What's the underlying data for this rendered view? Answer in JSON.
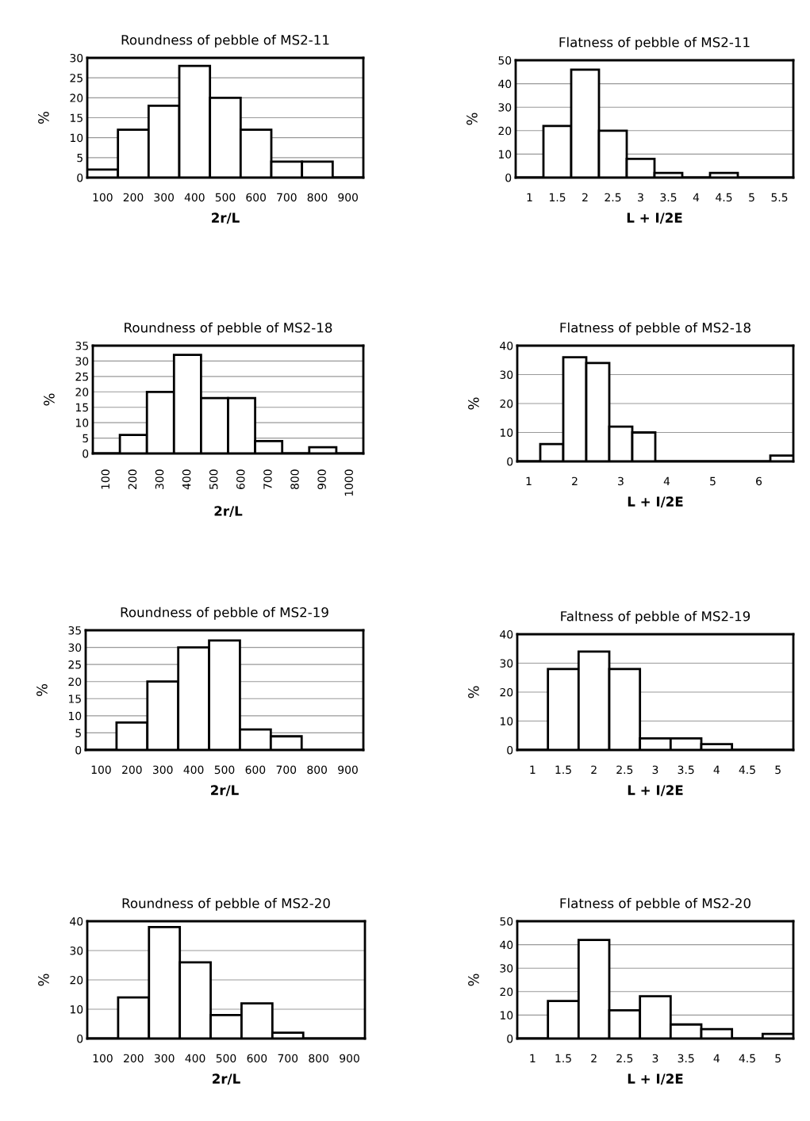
{
  "chart_data": [
    {
      "type": "bar",
      "title": "Roundness of pebble of MS2-11",
      "xlabel": "2r/L",
      "ylabel": "%",
      "categories": [
        "100",
        "200",
        "300",
        "400",
        "500",
        "600",
        "700",
        "800",
        "900"
      ],
      "values": [
        2,
        12,
        18,
        28,
        20,
        12,
        4,
        4,
        0
      ],
      "color": "#ffffff",
      "ylim": [
        0,
        30
      ],
      "yticks": [
        0,
        5,
        10,
        15,
        20,
        25,
        30
      ],
      "grid": "y"
    },
    {
      "type": "bar",
      "title": "Flatness of pebble of MS2-11",
      "xlabel": "L + I/2E",
      "ylabel": "%",
      "categories": [
        "1",
        "1.5",
        "2",
        "2.5",
        "3",
        "3.5",
        "4",
        "4.5",
        "5",
        "5.5"
      ],
      "values": [
        0,
        22,
        46,
        20,
        8,
        2,
        0,
        2,
        0,
        0
      ],
      "color": "#ffffff",
      "ylim": [
        0,
        50
      ],
      "yticks": [
        0,
        10,
        20,
        30,
        40,
        50
      ],
      "grid": "y"
    },
    {
      "type": "bar",
      "title": "Roundness of pebble of MS2-18",
      "xlabel": "2r/L",
      "ylabel": "%",
      "categories": [
        "100",
        "200",
        "300",
        "400",
        "500",
        "600",
        "700",
        "800",
        "900",
        "1000"
      ],
      "values": [
        0,
        6,
        20,
        32,
        18,
        18,
        4,
        0,
        2,
        0
      ],
      "color": "#ffffff",
      "ylim": [
        0,
        35
      ],
      "yticks": [
        0,
        5,
        10,
        15,
        20,
        25,
        30,
        35
      ],
      "grid": "y"
    },
    {
      "type": "bar",
      "title": "Flatness of pebble of MS2-18",
      "xlabel": "L + I/2E",
      "ylabel": "%",
      "categories": [
        "1",
        null,
        "2",
        null,
        "3",
        null,
        "4",
        null,
        "5",
        null,
        "6",
        null
      ],
      "values": [
        0,
        6,
        36,
        34,
        12,
        10,
        0,
        0,
        0,
        0,
        0,
        2
      ],
      "color": "#ffffff",
      "ylim": [
        0,
        40
      ],
      "yticks": [
        0,
        10,
        20,
        30,
        40
      ],
      "grid": "y"
    },
    {
      "type": "bar",
      "title": "Roundness of pebble of MS2-19",
      "xlabel": "2r/L",
      "ylabel": "%",
      "categories": [
        "100",
        "200",
        "300",
        "400",
        "500",
        "600",
        "700",
        "800",
        "900"
      ],
      "values": [
        0,
        8,
        20,
        30,
        32,
        6,
        4,
        0,
        0
      ],
      "color": "#ffffff",
      "ylim": [
        0,
        35
      ],
      "yticks": [
        0,
        5,
        10,
        15,
        20,
        25,
        30,
        35
      ],
      "grid": "y"
    },
    {
      "type": "bar",
      "title": "Faltness of pebble of MS2-19",
      "xlabel": "L + I/2E",
      "ylabel": "%",
      "categories": [
        "1",
        "1.5",
        "2",
        "2.5",
        "3",
        "3.5",
        "4",
        "4.5",
        "5"
      ],
      "values": [
        0,
        28,
        34,
        28,
        4,
        4,
        2,
        0,
        0
      ],
      "color": "#ffffff",
      "ylim": [
        0,
        40
      ],
      "yticks": [
        0,
        10,
        20,
        30,
        40
      ],
      "grid": "y"
    },
    {
      "type": "bar",
      "title": "Roundness of pebble of MS2-20",
      "xlabel": "2r/L",
      "ylabel": "%",
      "categories": [
        "100",
        "200",
        "300",
        "400",
        "500",
        "600",
        "700",
        "800",
        "900"
      ],
      "values": [
        0,
        14,
        38,
        26,
        8,
        12,
        2,
        0,
        0
      ],
      "color": "#ffffff",
      "ylim": [
        0,
        40
      ],
      "yticks": [
        0,
        10,
        20,
        30,
        40
      ],
      "grid": "y"
    },
    {
      "type": "bar",
      "title": "Flatness of pebble of MS2-20",
      "xlabel": "L + I/2E",
      "ylabel": "%",
      "categories": [
        "1",
        "1.5",
        "2",
        "2.5",
        "3",
        "3.5",
        "4",
        "4.5",
        "5"
      ],
      "values": [
        0,
        16,
        42,
        12,
        18,
        6,
        4,
        0,
        2
      ],
      "color": "#ffffff",
      "ylim": [
        0,
        50
      ],
      "yticks": [
        0,
        10,
        20,
        30,
        40,
        50
      ],
      "grid": "y"
    }
  ]
}
